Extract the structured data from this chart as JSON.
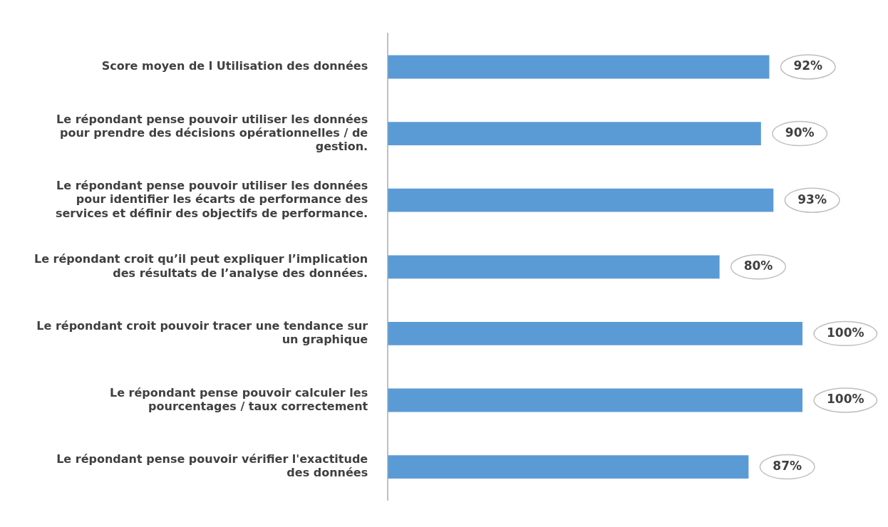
{
  "chart_data": {
    "type": "bar",
    "orientation": "horizontal",
    "categories": [
      "Score moyen de l Utilisation des données",
      "Le répondant pense pouvoir utiliser les données pour prendre des décisions opérationnelles / de gestion.",
      "Le répondant pense pouvoir utiliser les données pour identifier les écarts de performance des services et définir des objectifs de performance.",
      "Le répondant croit qu’il peut expliquer l’implication des résultats de l’analyse des données.",
      "Le répondant croit pouvoir tracer une tendance sur un graphique",
      "Le répondant pense pouvoir calculer les pourcentages / taux correctement",
      "Le répondant pense pouvoir vérifier l'exactitude des données"
    ],
    "values": [
      92,
      90,
      93,
      80,
      100,
      100,
      87
    ],
    "value_labels": [
      "92%",
      "90%",
      "93%",
      "80%",
      "100%",
      "100%",
      "87%"
    ],
    "color": "#5b9bd5",
    "grid": false,
    "legend": false
  }
}
